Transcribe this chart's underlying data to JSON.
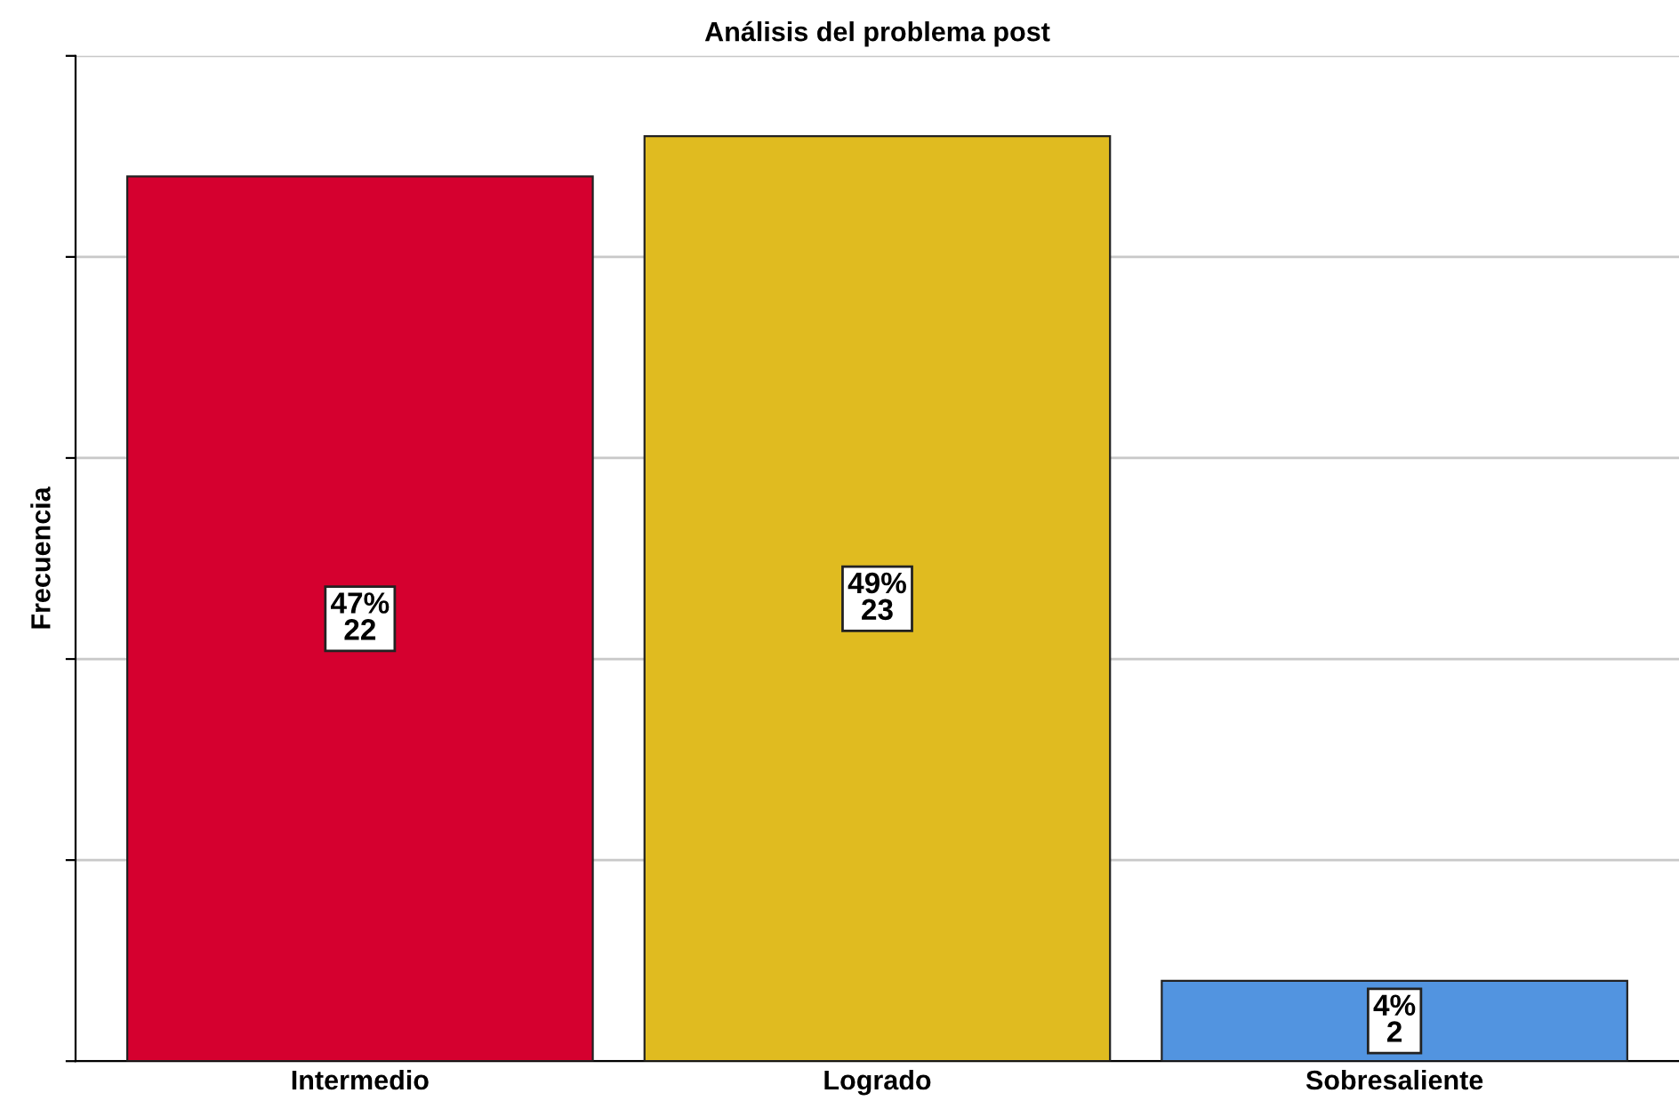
{
  "chart_data": {
    "type": "bar",
    "title": "Análisis del problema post",
    "ylabel": "Frecuencia",
    "categories": [
      "Intermedio",
      "Logrado",
      "Sobresaliente"
    ],
    "values": [
      22,
      23,
      2
    ],
    "colors": [
      "#d5002f",
      "#e0bb20",
      "#5294e0"
    ],
    "value_labels": [
      "47%\n22",
      "49%\n23",
      "4%\n2"
    ],
    "ylim": [
      0,
      25
    ],
    "yticks": [
      {
        "value": 0,
        "label": null
      },
      {
        "value": 5,
        "label": null
      },
      {
        "value": 10,
        "label": null
      },
      {
        "value": 15,
        "label": null
      },
      {
        "value": 20,
        "label": null
      },
      {
        "value": 25,
        "label": null
      }
    ],
    "grid": "y",
    "tick_labels": "x"
  }
}
